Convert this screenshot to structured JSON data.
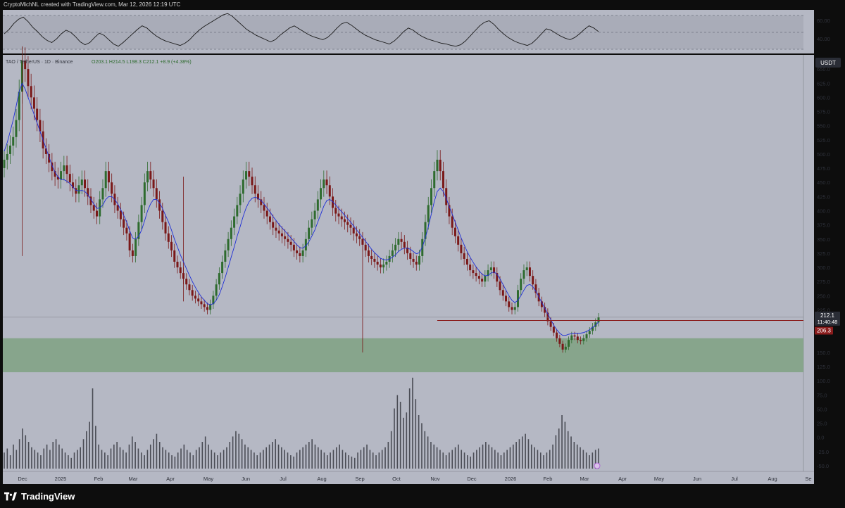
{
  "header": {
    "attribution": "CryptoMichNL created with TradingView.com, Mar 12, 2026 12:19 UTC"
  },
  "legend": {
    "symbol": "TAO / TetherUS · 1D · Binance",
    "ohlc": "O203.1  H214.5  L198.3  C212.1  +8.9 (+4.38%)"
  },
  "footer": {
    "brand": "TradingView"
  },
  "colors": {
    "background": "#b5b8c4",
    "up": "#2e6b2e",
    "down": "#7a1818",
    "ma": "#1f2fd6",
    "zone": "#87a58c",
    "price_label_bg": "#2a2d36",
    "support_label_bg": "#8a1c1c"
  },
  "chart_data": [
    {
      "type": "line",
      "name": "RSI",
      "y_ticks": [
        "60.00",
        "40.00"
      ],
      "ylim": [
        25,
        85
      ],
      "values": [
        52,
        58,
        66,
        72,
        75,
        69,
        61,
        55,
        48,
        43,
        40,
        45,
        52,
        57,
        54,
        48,
        41,
        37,
        40,
        47,
        53,
        50,
        44,
        38,
        35,
        40,
        46,
        52,
        58,
        63,
        60,
        54,
        49,
        45,
        42,
        40,
        38,
        36,
        39,
        44,
        51,
        57,
        62,
        66,
        70,
        74,
        78,
        80,
        76,
        70,
        64,
        58,
        54,
        50,
        47,
        44,
        41,
        44,
        50,
        55,
        60,
        63,
        59,
        55,
        51,
        48,
        46,
        44,
        47,
        53,
        60,
        66,
        68,
        64,
        59,
        54,
        50,
        47,
        44,
        42,
        40,
        38,
        42,
        48,
        55,
        60,
        57,
        52,
        48,
        45,
        43,
        41,
        39,
        38,
        36,
        35,
        37,
        42,
        49,
        56,
        63,
        68,
        70,
        65,
        58,
        52,
        47,
        43,
        40,
        38,
        36,
        39,
        45,
        52,
        59,
        57,
        53,
        49,
        46,
        44,
        47,
        52,
        58,
        63,
        60,
        55
      ]
    },
    {
      "type": "candlestick",
      "name": "TAO/USDT",
      "x_ticks": [
        "Dec",
        "2025",
        "Feb",
        "Mar",
        "Apr",
        "May",
        "Jun",
        "Jul",
        "Aug",
        "Sep",
        "Oct",
        "Nov",
        "Dec",
        "2026",
        "Feb",
        "Mar",
        "Apr",
        "May",
        "Jun",
        "Jul",
        "Aug",
        "Se"
      ],
      "y_ticks": [
        "650.0",
        "625.0",
        "600.0",
        "575.0",
        "550.0",
        "525.0",
        "500.0",
        "475.0",
        "450.0",
        "425.0",
        "400.0",
        "375.0",
        "350.0",
        "325.0",
        "300.0",
        "275.0",
        "250.0",
        "225.0",
        "150.0",
        "125.0",
        "100.0",
        "75.0",
        "50.0",
        "25.0",
        "0.0",
        "-25.0",
        "-50.0"
      ],
      "ylim": [
        -60,
        675
      ],
      "quote_currency": "USDT",
      "last_price": "212.1",
      "countdown": "11:40:48",
      "support_level_label": "206.3",
      "support_level": 206.3,
      "demand_zone": [
        115,
        175
      ],
      "closes": [
        490,
        500,
        515,
        530,
        560,
        610,
        665,
        650,
        620,
        600,
        580,
        560,
        540,
        510,
        500,
        485,
        470,
        460,
        455,
        470,
        480,
        465,
        450,
        440,
        430,
        445,
        455,
        440,
        425,
        410,
        400,
        390,
        420,
        440,
        470,
        450,
        430,
        410,
        400,
        385,
        370,
        360,
        330,
        320,
        350,
        380,
        410,
        450,
        470,
        455,
        440,
        420,
        400,
        380,
        360,
        345,
        330,
        310,
        300,
        290,
        280,
        270,
        260,
        250,
        245,
        240,
        235,
        230,
        225,
        235,
        250,
        270,
        290,
        310,
        330,
        350,
        370,
        390,
        410,
        430,
        455,
        470,
        460,
        445,
        430,
        420,
        410,
        400,
        390,
        380,
        370,
        365,
        360,
        355,
        350,
        345,
        340,
        330,
        325,
        320,
        330,
        350,
        370,
        385,
        400,
        420,
        440,
        455,
        445,
        425,
        405,
        395,
        390,
        385,
        380,
        375,
        370,
        360,
        355,
        350,
        340,
        330,
        320,
        315,
        310,
        305,
        300,
        305,
        310,
        320,
        330,
        340,
        350,
        345,
        335,
        325,
        315,
        310,
        305,
        320,
        350,
        380,
        410,
        440,
        470,
        490,
        470,
        440,
        410,
        390,
        370,
        355,
        340,
        325,
        315,
        305,
        295,
        290,
        285,
        280,
        275,
        285,
        295,
        300,
        290,
        275,
        260,
        250,
        240,
        230,
        225,
        230,
        260,
        280,
        295,
        300,
        285,
        270,
        255,
        240,
        230,
        220,
        205,
        195,
        185,
        175,
        165,
        155,
        160,
        172,
        180,
        178,
        172,
        170,
        175,
        182,
        188,
        195,
        203,
        212
      ],
      "moving_average": [
        505,
        520,
        540,
        560,
        585,
        610,
        625,
        615,
        600,
        585,
        570,
        555,
        540,
        525,
        510,
        495,
        480,
        468,
        460,
        455,
        455,
        452,
        448,
        442,
        436,
        435,
        436,
        434,
        428,
        420,
        412,
        404,
        405,
        410,
        420,
        425,
        425,
        420,
        412,
        402,
        392,
        380,
        365,
        352,
        350,
        355,
        366,
        382,
        400,
        412,
        420,
        420,
        414,
        404,
        392,
        380,
        366,
        350,
        336,
        322,
        310,
        298,
        286,
        275,
        265,
        256,
        248,
        242,
        236,
        234,
        236,
        242,
        252,
        266,
        282,
        300,
        318,
        336,
        355,
        372,
        390,
        405,
        416,
        422,
        424,
        422,
        418,
        412,
        405,
        398,
        390,
        383,
        376,
        370,
        364,
        358,
        352,
        346,
        340,
        335,
        334,
        338,
        345,
        355,
        366,
        380,
        394,
        408,
        418,
        420,
        416,
        410,
        404,
        398,
        392,
        386,
        380,
        373,
        366,
        360,
        353,
        346,
        339,
        332,
        326,
        321,
        316,
        314,
        313,
        315,
        318,
        322,
        328,
        332,
        334,
        334,
        332,
        328,
        324,
        326,
        336,
        352,
        372,
        394,
        416,
        434,
        440,
        434,
        422,
        408,
        394,
        380,
        366,
        352,
        340,
        328,
        318,
        309,
        301,
        294,
        288,
        285,
        286,
        290,
        292,
        288,
        280,
        270,
        260,
        250,
        242,
        238,
        242,
        250,
        260,
        268,
        270,
        266,
        258,
        248,
        238,
        228,
        218,
        208,
        198,
        190,
        184,
        180,
        180,
        182,
        183,
        184,
        184,
        184,
        185,
        187,
        190,
        194,
        198,
        204
      ]
    },
    {
      "type": "bar",
      "name": "Volume",
      "values": [
        12,
        15,
        10,
        18,
        14,
        22,
        30,
        25,
        20,
        16,
        14,
        12,
        10,
        15,
        18,
        14,
        20,
        22,
        18,
        15,
        12,
        10,
        8,
        12,
        14,
        16,
        22,
        28,
        35,
        60,
        32,
        18,
        14,
        12,
        10,
        15,
        18,
        20,
        16,
        14,
        12,
        18,
        24,
        20,
        15,
        12,
        10,
        14,
        18,
        22,
        26,
        20,
        16,
        14,
        12,
        10,
        9,
        12,
        15,
        18,
        14,
        12,
        10,
        14,
        16,
        20,
        24,
        18,
        14,
        12,
        10,
        12,
        14,
        16,
        20,
        24,
        28,
        26,
        22,
        18,
        16,
        14,
        12,
        10,
        12,
        14,
        16,
        18,
        20,
        22,
        18,
        16,
        14,
        12,
        10,
        9,
        12,
        14,
        16,
        18,
        20,
        22,
        18,
        16,
        14,
        12,
        10,
        12,
        14,
        16,
        18,
        14,
        12,
        10,
        9,
        8,
        12,
        14,
        16,
        18,
        14,
        12,
        10,
        12,
        14,
        16,
        20,
        28,
        45,
        55,
        50,
        38,
        42,
        60,
        68,
        52,
        40,
        34,
        28,
        24,
        20,
        18,
        16,
        14,
        12,
        10,
        12,
        14,
        16,
        18,
        14,
        12,
        10,
        9,
        12,
        14,
        16,
        18,
        20,
        18,
        16,
        14,
        12,
        10,
        12,
        14,
        16,
        18,
        20,
        22,
        24,
        26,
        22,
        18,
        16,
        14,
        12,
        10,
        12,
        14,
        18,
        25,
        30,
        40,
        35,
        28,
        24,
        20,
        18,
        16,
        14,
        12,
        10,
        12,
        14,
        15
      ]
    }
  ]
}
